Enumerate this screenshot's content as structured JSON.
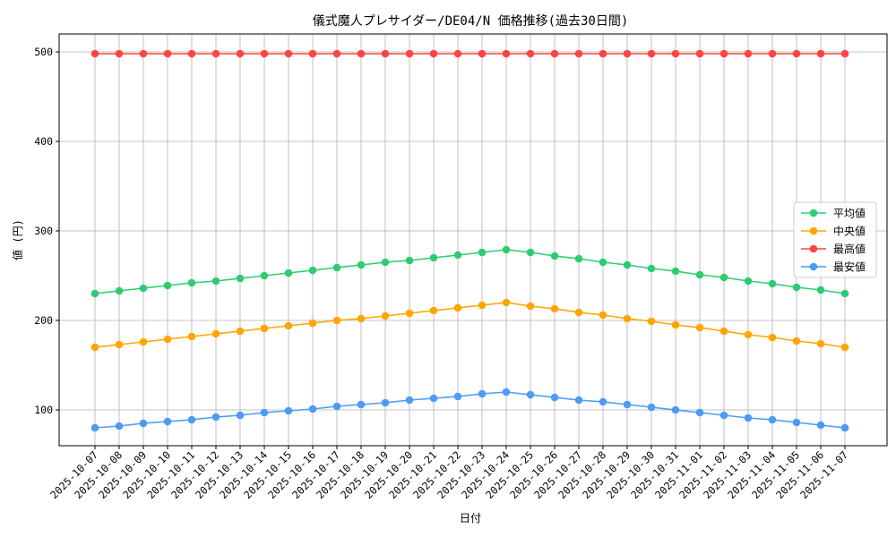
{
  "chart_data": {
    "type": "line",
    "title": "儀式魔人プレサイダー/DE04/N 価格推移(過去30日間)",
    "xlabel": "日付",
    "ylabel": "値 (円)",
    "ylim": [
      60,
      520
    ],
    "yticks": [
      100,
      200,
      300,
      400,
      500
    ],
    "grid": true,
    "legend_position": "center-right",
    "categories": [
      "2025-10-07",
      "2025-10-08",
      "2025-10-09",
      "2025-10-10",
      "2025-10-11",
      "2025-10-12",
      "2025-10-13",
      "2025-10-14",
      "2025-10-15",
      "2025-10-16",
      "2025-10-17",
      "2025-10-18",
      "2025-10-19",
      "2025-10-20",
      "2025-10-21",
      "2025-10-22",
      "2025-10-23",
      "2025-10-24",
      "2025-10-25",
      "2025-10-26",
      "2025-10-27",
      "2025-10-28",
      "2025-10-29",
      "2025-10-30",
      "2025-10-31",
      "2025-11-01",
      "2025-11-02",
      "2025-11-03",
      "2025-11-04",
      "2025-11-05",
      "2025-11-06",
      "2025-11-07"
    ],
    "series": [
      {
        "name": "平均値",
        "color": "#2ecc71",
        "values": [
          230,
          233,
          236,
          239,
          242,
          244,
          247,
          250,
          253,
          256,
          259,
          262,
          265,
          267,
          270,
          273,
          276,
          279,
          276,
          272,
          269,
          265,
          262,
          258,
          255,
          251,
          248,
          244,
          241,
          237,
          234,
          230
        ]
      },
      {
        "name": "中央値",
        "color": "#ffa500",
        "values": [
          170,
          173,
          176,
          179,
          182,
          185,
          188,
          191,
          194,
          197,
          200,
          202,
          205,
          208,
          211,
          214,
          217,
          220,
          216,
          213,
          209,
          206,
          202,
          199,
          195,
          192,
          188,
          184,
          181,
          177,
          174,
          170
        ]
      },
      {
        "name": "最高値",
        "color": "#ff4444",
        "values": [
          498,
          498,
          498,
          498,
          498,
          498,
          498,
          498,
          498,
          498,
          498,
          498,
          498,
          498,
          498,
          498,
          498,
          498,
          498,
          498,
          498,
          498,
          498,
          498,
          498,
          498,
          498,
          498,
          498,
          498,
          498,
          498
        ]
      },
      {
        "name": "最安値",
        "color": "#4c9bf5",
        "values": [
          80,
          82,
          85,
          87,
          89,
          92,
          94,
          97,
          99,
          101,
          104,
          106,
          108,
          111,
          113,
          115,
          118,
          120,
          117,
          114,
          111,
          109,
          106,
          103,
          100,
          97,
          94,
          91,
          89,
          86,
          83,
          80
        ]
      }
    ]
  }
}
